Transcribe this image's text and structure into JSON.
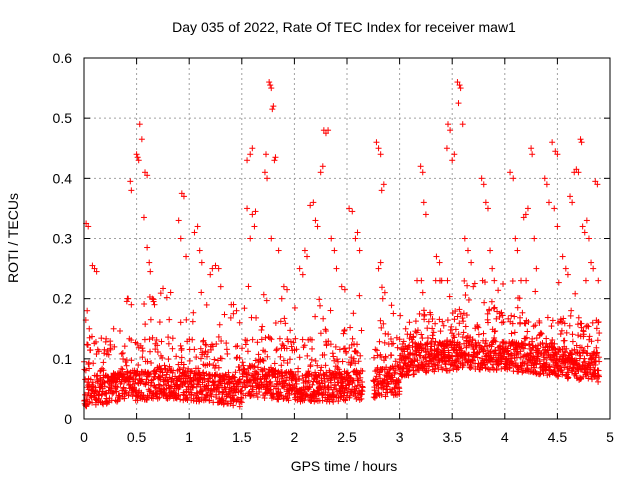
{
  "chart_data": {
    "type": "scatter",
    "title": "Day 035 of 2022, Rate Of TEC Index for receiver maw1",
    "xlabel": "GPS time / hours",
    "ylabel": "ROTI / TECUs",
    "xlim": [
      0,
      5
    ],
    "ylim": [
      0,
      0.6
    ],
    "xticks": [
      0,
      0.5,
      1,
      1.5,
      2,
      2.5,
      3,
      3.5,
      4,
      4.5,
      5
    ],
    "xtick_labels": [
      "0",
      "0.5",
      "1",
      "1.5",
      "2",
      "2.5",
      "3",
      "3.5",
      "4",
      "4.5",
      "5"
    ],
    "yticks": [
      0,
      0.1,
      0.2,
      0.3,
      0.4,
      0.5,
      0.6
    ],
    "ytick_labels": [
      "0",
      "0.1",
      "0.2",
      "0.3",
      "0.4",
      "0.5",
      "0.6"
    ],
    "grid": true,
    "marker": "plus",
    "color": "#ff0000",
    "x_end": 4.9,
    "gaps": [
      [
        2.65,
        2.75
      ]
    ],
    "series": [
      {
        "points": [
          [
            0.02,
            0.325
          ],
          [
            0.04,
            0.32
          ],
          [
            0.03,
            0.18
          ],
          [
            0.05,
            0.15
          ],
          [
            0.08,
            0.255
          ],
          [
            0.1,
            0.25
          ],
          [
            0.12,
            0.245
          ],
          [
            0.44,
            0.395
          ],
          [
            0.45,
            0.38
          ],
          [
            0.5,
            0.44
          ],
          [
            0.51,
            0.435
          ],
          [
            0.52,
            0.43
          ],
          [
            0.53,
            0.49
          ],
          [
            0.55,
            0.465
          ],
          [
            0.58,
            0.41
          ],
          [
            0.6,
            0.405
          ],
          [
            0.57,
            0.335
          ],
          [
            0.62,
            0.26
          ],
          [
            0.63,
            0.245
          ],
          [
            0.6,
            0.285
          ],
          [
            0.65,
            0.2
          ],
          [
            0.67,
            0.19
          ],
          [
            0.45,
            0.19
          ],
          [
            0.42,
            0.2
          ],
          [
            0.93,
            0.375
          ],
          [
            0.95,
            0.37
          ],
          [
            0.9,
            0.33
          ],
          [
            0.92,
            0.3
          ],
          [
            0.97,
            0.27
          ],
          [
            1.05,
            0.31
          ],
          [
            1.08,
            0.32
          ],
          [
            1.1,
            0.28
          ],
          [
            1.12,
            0.26
          ],
          [
            1.2,
            0.24
          ],
          [
            1.22,
            0.25
          ],
          [
            1.25,
            0.255
          ],
          [
            1.28,
            0.25
          ],
          [
            1.3,
            0.22
          ],
          [
            1.4,
            0.19
          ],
          [
            1.42,
            0.175
          ],
          [
            1.45,
            0.18
          ],
          [
            1.48,
            0.16
          ],
          [
            1.55,
            0.35
          ],
          [
            1.6,
            0.34
          ],
          [
            1.63,
            0.345
          ],
          [
            1.62,
            0.32
          ],
          [
            1.58,
            0.3
          ],
          [
            1.58,
            0.44
          ],
          [
            1.6,
            0.45
          ],
          [
            1.55,
            0.43
          ],
          [
            1.72,
            0.41
          ],
          [
            1.74,
            0.4
          ],
          [
            1.73,
            0.44
          ],
          [
            1.76,
            0.56
          ],
          [
            1.77,
            0.555
          ],
          [
            1.78,
            0.55
          ],
          [
            1.79,
            0.515
          ],
          [
            1.8,
            0.52
          ],
          [
            1.81,
            0.43
          ],
          [
            1.82,
            0.435
          ],
          [
            1.78,
            0.3
          ],
          [
            1.85,
            0.28
          ],
          [
            1.88,
            0.2
          ],
          [
            1.9,
            0.22
          ],
          [
            1.93,
            0.215
          ],
          [
            2.05,
            0.25
          ],
          [
            2.08,
            0.24
          ],
          [
            2.1,
            0.28
          ],
          [
            2.12,
            0.27
          ],
          [
            2.15,
            0.355
          ],
          [
            2.18,
            0.36
          ],
          [
            2.2,
            0.33
          ],
          [
            2.22,
            0.32
          ],
          [
            2.28,
            0.48
          ],
          [
            2.3,
            0.475
          ],
          [
            2.32,
            0.48
          ],
          [
            2.27,
            0.42
          ],
          [
            2.25,
            0.41
          ],
          [
            2.35,
            0.3
          ],
          [
            2.38,
            0.28
          ],
          [
            2.4,
            0.25
          ],
          [
            2.45,
            0.22
          ],
          [
            2.48,
            0.215
          ],
          [
            2.52,
            0.35
          ],
          [
            2.55,
            0.345
          ],
          [
            2.58,
            0.3
          ],
          [
            2.6,
            0.31
          ],
          [
            2.62,
            0.28
          ],
          [
            2.78,
            0.46
          ],
          [
            2.8,
            0.45
          ],
          [
            2.82,
            0.44
          ],
          [
            2.83,
            0.38
          ],
          [
            2.85,
            0.39
          ],
          [
            2.8,
            0.25
          ],
          [
            2.82,
            0.26
          ],
          [
            2.84,
            0.2
          ],
          [
            2.86,
            0.21
          ],
          [
            3.2,
            0.42
          ],
          [
            3.22,
            0.41
          ],
          [
            3.23,
            0.36
          ],
          [
            3.25,
            0.34
          ],
          [
            3.35,
            0.27
          ],
          [
            3.38,
            0.26
          ],
          [
            3.4,
            0.23
          ],
          [
            3.45,
            0.45
          ],
          [
            3.46,
            0.49
          ],
          [
            3.48,
            0.48
          ],
          [
            3.5,
            0.43
          ],
          [
            3.52,
            0.44
          ],
          [
            3.55,
            0.56
          ],
          [
            3.57,
            0.555
          ],
          [
            3.58,
            0.55
          ],
          [
            3.56,
            0.525
          ],
          [
            3.6,
            0.49
          ],
          [
            3.62,
            0.3
          ],
          [
            3.65,
            0.28
          ],
          [
            3.68,
            0.26
          ],
          [
            3.7,
            0.22
          ],
          [
            3.78,
            0.4
          ],
          [
            3.8,
            0.39
          ],
          [
            3.82,
            0.36
          ],
          [
            3.84,
            0.35
          ],
          [
            3.86,
            0.28
          ],
          [
            3.88,
            0.25
          ],
          [
            3.9,
            0.23
          ],
          [
            4.05,
            0.41
          ],
          [
            4.08,
            0.4
          ],
          [
            4.1,
            0.3
          ],
          [
            4.12,
            0.28
          ],
          [
            4.18,
            0.335
          ],
          [
            4.2,
            0.34
          ],
          [
            4.22,
            0.35
          ],
          [
            4.25,
            0.45
          ],
          [
            4.26,
            0.44
          ],
          [
            4.28,
            0.3
          ],
          [
            4.3,
            0.25
          ],
          [
            4.38,
            0.4
          ],
          [
            4.4,
            0.39
          ],
          [
            4.42,
            0.36
          ],
          [
            4.45,
            0.46
          ],
          [
            4.48,
            0.445
          ],
          [
            4.5,
            0.44
          ],
          [
            4.47,
            0.35
          ],
          [
            4.5,
            0.32
          ],
          [
            4.55,
            0.27
          ],
          [
            4.58,
            0.25
          ],
          [
            4.6,
            0.24
          ],
          [
            4.62,
            0.37
          ],
          [
            4.64,
            0.36
          ],
          [
            4.66,
            0.41
          ],
          [
            4.68,
            0.415
          ],
          [
            4.7,
            0.41
          ],
          [
            4.72,
            0.465
          ],
          [
            4.73,
            0.46
          ],
          [
            4.74,
            0.32
          ],
          [
            4.76,
            0.31
          ],
          [
            4.78,
            0.33
          ],
          [
            4.8,
            0.3
          ],
          [
            4.82,
            0.26
          ],
          [
            4.84,
            0.25
          ],
          [
            4.86,
            0.395
          ],
          [
            4.88,
            0.39
          ]
        ]
      }
    ]
  }
}
